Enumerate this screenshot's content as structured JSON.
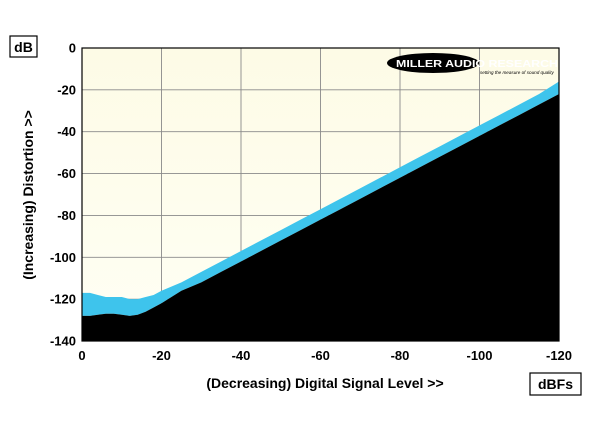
{
  "chart_data": {
    "type": "area",
    "title": "",
    "xlabel": "(Decreasing) Digital Signal Level >>",
    "ylabel": "(Increasing) Distortion >>",
    "x_unit": "dBFs",
    "y_unit": "dB",
    "x_ticks": [
      "0",
      "-20",
      "-40",
      "-60",
      "-80",
      "-100",
      "-120"
    ],
    "y_ticks": [
      "0",
      "-20",
      "-40",
      "-60",
      "-80",
      "-100",
      "-120",
      "-140"
    ],
    "xlim": [
      0,
      -120
    ],
    "ylim": [
      -140,
      0
    ],
    "grid": true,
    "logo": {
      "name": "MILLER AUDIO RESEARCH",
      "tagline": "setting the measure of sound quality"
    },
    "colors": {
      "background_top": "#fdfbe6",
      "background_bottom": "#fffff4",
      "band": "#3ec4ec",
      "floor": "#000000",
      "grid": "#8a8a8a"
    },
    "series": [
      {
        "x": [
          0,
          -2,
          -4,
          -6,
          -8,
          -10,
          -12,
          -14,
          -16,
          -18,
          -20,
          -25,
          -30,
          -35,
          -40,
          -45,
          -50,
          -55,
          -60,
          -65,
          -70,
          -75,
          -80,
          -85,
          -90,
          -95,
          -100,
          -105,
          -110,
          -115,
          -120
        ],
        "upper": [
          -117,
          -117,
          -118,
          -119,
          -119,
          -119,
          -120,
          -120,
          -119,
          -118,
          -116,
          -112,
          -107,
          -102,
          -97,
          -92,
          -87,
          -82,
          -77,
          -72,
          -67,
          -62,
          -57,
          -52,
          -47,
          -42,
          -37,
          -32,
          -27,
          -22,
          -16
        ],
        "lower": [
          -128,
          -128,
          -127.5,
          -127,
          -127,
          -127.5,
          -128,
          -127.5,
          -126,
          -124,
          -122,
          -116,
          -112,
          -107,
          -102,
          -97,
          -92,
          -87,
          -82,
          -77,
          -72,
          -67,
          -62,
          -57,
          -52,
          -47,
          -42,
          -37,
          -32,
          -27,
          -22
        ]
      }
    ]
  }
}
